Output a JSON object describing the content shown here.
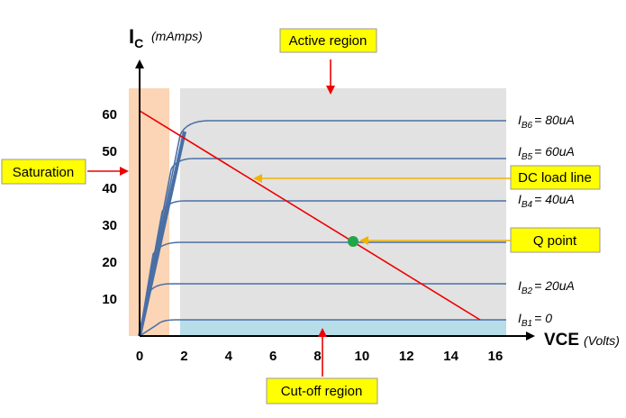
{
  "y_axis": {
    "symbol": "I",
    "subscript": "C",
    "unit": "(mAmps)",
    "ticks": [
      10,
      20,
      30,
      40,
      50,
      60
    ]
  },
  "x_axis": {
    "label": "VCE",
    "unit": "(Volts)",
    "ticks": [
      0,
      2,
      4,
      6,
      8,
      10,
      12,
      14,
      16
    ]
  },
  "curve_labels": [
    {
      "symbol": "I",
      "subscript": "B6",
      "text": "= 80uA"
    },
    {
      "symbol": "I",
      "subscript": "B5",
      "text": "= 60uA"
    },
    {
      "symbol": "I",
      "subscript": "B4",
      "text": "= 40uA"
    },
    {
      "symbol": "I",
      "subscript": "B2",
      "text": "= 20uA"
    },
    {
      "symbol": "I",
      "subscript": "B1",
      "text": "= 0"
    }
  ],
  "callouts": {
    "active": "Active region",
    "saturation": "Saturation",
    "load_line": "DC load line",
    "q_point": "Q point",
    "cutoff": "Cut-off region"
  }
}
